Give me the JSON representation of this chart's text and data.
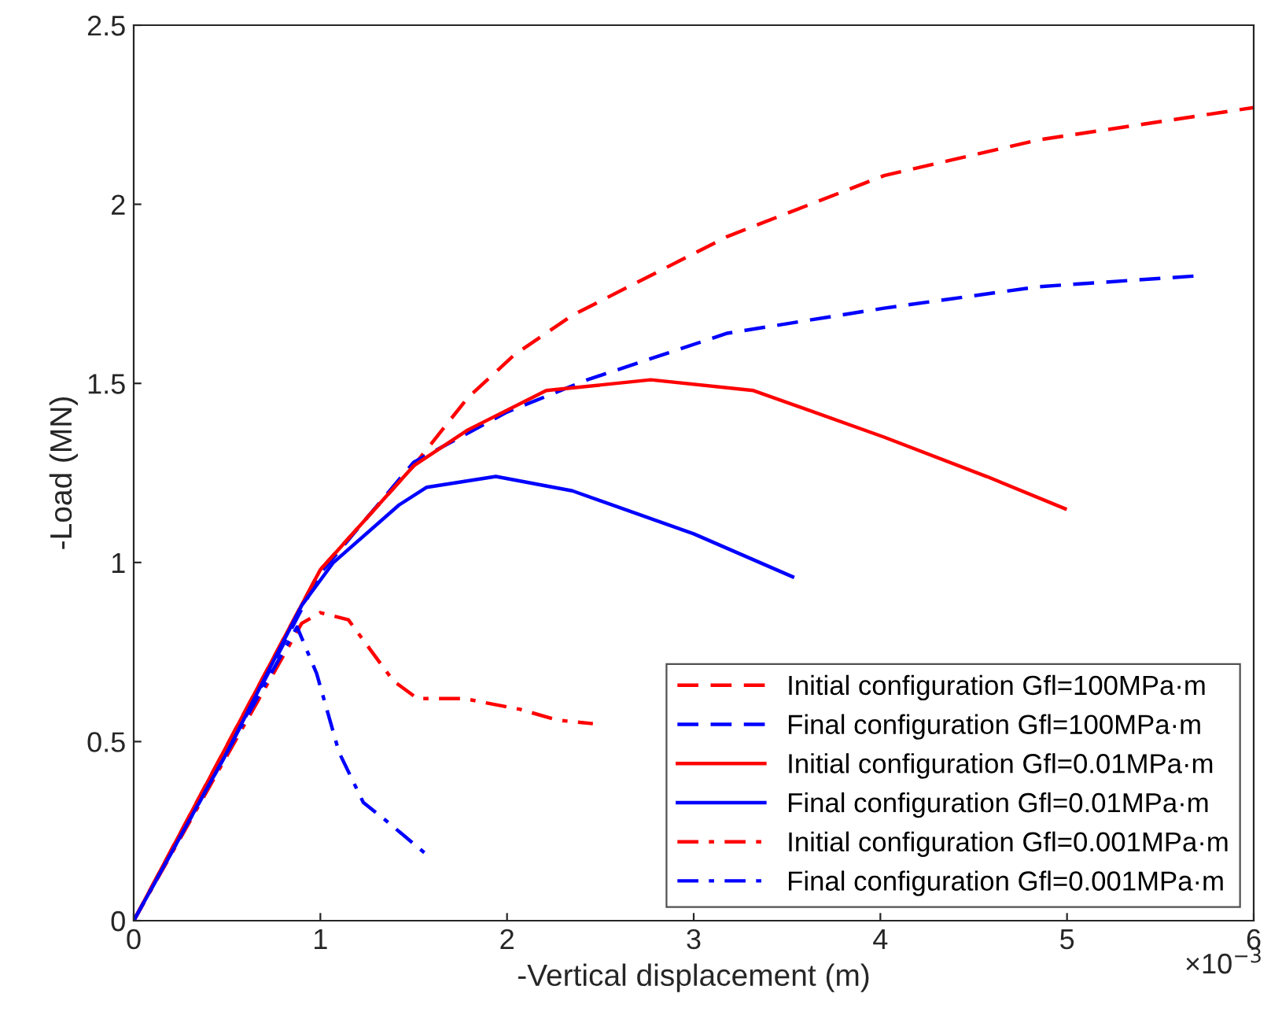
{
  "chart_data": {
    "type": "line",
    "xlabel": "-Vertical displacement (m)",
    "ylabel": "-Load (MN)",
    "xlim": [
      0,
      6
    ],
    "xticks": [
      0,
      1,
      2,
      3,
      4,
      5,
      6
    ],
    "ylim": [
      0,
      2.5
    ],
    "yticks": [
      0,
      0.5,
      1,
      1.5,
      2,
      2.5
    ],
    "grid": false,
    "legend": "bottom right",
    "marker": "none",
    "annotations": [
      "×10$^{−3}$"
    ],
    "series": [
      {
        "name": "Initial configuration Gfl=100MPa·m",
        "color": "#ff0000",
        "line_style": "dashed",
        "x": [
          0,
          1,
          1.5,
          1.79,
          2.04,
          2.35,
          3.18,
          4.02,
          4.85,
          6
        ],
        "values": [
          0,
          0.98,
          1.27,
          1.46,
          1.58,
          1.69,
          1.91,
          2.08,
          2.18,
          2.27
        ]
      },
      {
        "name": "Final configuration Gfl=100MPa·m",
        "color": "#0000ff",
        "line_style": "dashed",
        "x": [
          0,
          0.5,
          1,
          1.5,
          2,
          2.43,
          3.18,
          4.02,
          4.85,
          5.69
        ],
        "values": [
          0,
          0.47,
          0.97,
          1.28,
          1.42,
          1.51,
          1.64,
          1.71,
          1.77,
          1.8
        ]
      },
      {
        "name": "Initial configuration Gfl=0.01MPa·m",
        "color": "#ff0000",
        "line_style": "solid",
        "x": [
          0,
          1,
          1.5,
          1.79,
          2.21,
          2.77,
          3.32,
          4.02,
          4.57,
          4.99
        ],
        "values": [
          0,
          0.98,
          1.27,
          1.37,
          1.48,
          1.51,
          1.48,
          1.35,
          1.24,
          1.15
        ]
      },
      {
        "name": "Final configuration Gfl=0.01MPa·m",
        "color": "#0000ff",
        "line_style": "solid",
        "x": [
          0,
          0.5,
          0.9,
          1.07,
          1.42,
          1.57,
          1.94,
          2.35,
          3.0,
          3.53
        ],
        "values": [
          0,
          0.47,
          0.88,
          1.0,
          1.16,
          1.21,
          1.24,
          1.2,
          1.08,
          0.96
        ]
      },
      {
        "name": "Initial configuration Gfl=0.001MPa·m",
        "color": "#ff0000",
        "line_style": "dashdot",
        "x": [
          0,
          0.9,
          1.0,
          1.15,
          1.39,
          1.52,
          1.77,
          2.07,
          2.27,
          2.46
        ],
        "values": [
          0,
          0.83,
          0.86,
          0.84,
          0.67,
          0.62,
          0.62,
          0.59,
          0.56,
          0.55
        ]
      },
      {
        "name": "Final configuration Gfl=0.001MPa·m",
        "color": "#0000ff",
        "line_style": "dashdot",
        "x": [
          0,
          0.5,
          0.875,
          0.98,
          1.1,
          1.23,
          1.35,
          1.58
        ],
        "values": [
          0,
          0.47,
          0.82,
          0.69,
          0.47,
          0.33,
          0.28,
          0.18
        ]
      }
    ]
  }
}
